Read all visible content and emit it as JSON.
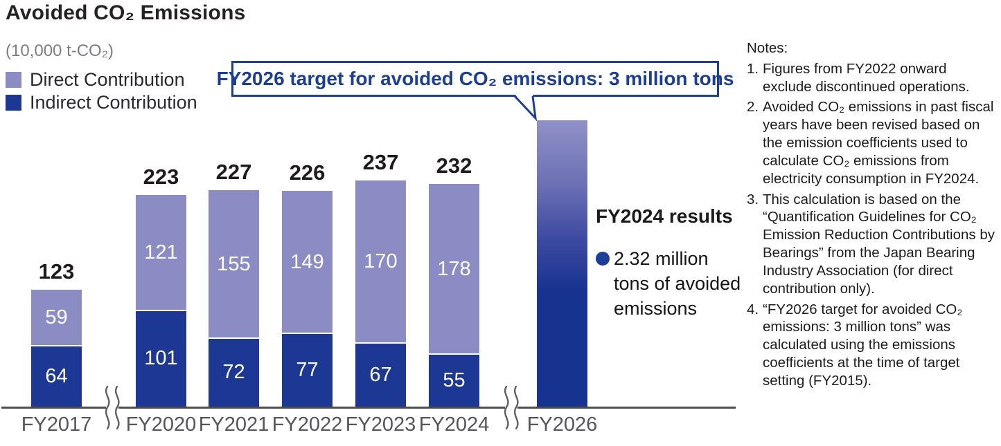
{
  "title": "Avoided CO₂ Emissions",
  "unit_label": "(10,000 t-CO₂)",
  "legend": {
    "direct": "Direct Contribution",
    "indirect": "Indirect Contribution"
  },
  "colors": {
    "direct": "#8b8cc4",
    "indirect": "#1d3894",
    "target_top": "#8f90c6",
    "target_mid": "#3c49a1",
    "target_bottom": "#16338f",
    "callout_blue": "#1c3e99",
    "axis_gray": "#4d4d50"
  },
  "callout": {
    "text": "FY2026 target for avoided CO₂ emissions: 3 million tons"
  },
  "results_panel": {
    "heading": "FY2024 results",
    "bullet_text": "2.32 million tons of avoided emissions"
  },
  "chart_data": {
    "type": "bar",
    "stacked": true,
    "title": "Avoided CO₂ Emissions",
    "ylabel": "(10,000 t-CO₂)",
    "ylim": [
      0,
      300
    ],
    "grid": false,
    "legend_position": "top-left",
    "categories": [
      "FY2017",
      "FY2020",
      "FY2021",
      "FY2022",
      "FY2023",
      "FY2024",
      "FY2026"
    ],
    "series": [
      {
        "name": "Indirect Contribution",
        "values": [
          64,
          101,
          72,
          77,
          67,
          55,
          null
        ]
      },
      {
        "name": "Direct Contribution",
        "values": [
          59,
          121,
          155,
          149,
          170,
          178,
          null
        ]
      }
    ],
    "totals": [
      123,
      223,
      227,
      226,
      237,
      232,
      null
    ],
    "bars": [
      {
        "category": "FY2017",
        "indirect": 64,
        "direct": 59,
        "total": "123"
      },
      {
        "category": "FY2020",
        "indirect": 101,
        "direct": 121,
        "total": "223"
      },
      {
        "category": "FY2021",
        "indirect": 72,
        "direct": 155,
        "total": "227"
      },
      {
        "category": "FY2022",
        "indirect": 77,
        "direct": 149,
        "total": "226"
      },
      {
        "category": "FY2023",
        "indirect": 67,
        "direct": 170,
        "total": "237"
      },
      {
        "category": "FY2024",
        "indirect": 55,
        "direct": 178,
        "total": "232"
      },
      {
        "category": "FY2026",
        "target": 300
      }
    ],
    "target_bar": {
      "category": "FY2026",
      "value": 300,
      "meaning": "3 million tons target"
    },
    "axis_breaks": [
      "between FY2017 and FY2020",
      "between FY2024 and FY2026"
    ]
  },
  "notes": {
    "heading": "Notes:",
    "items": [
      {
        "num": "1.",
        "text": "Figures from FY2022 onward exclude discontinued operations."
      },
      {
        "num": "2.",
        "text": "Avoided CO₂ emissions in past fiscal years have been revised based on the emission coefficients used to calculate CO₂ emissions from electricity consumption in FY2024."
      },
      {
        "num": "3.",
        "text": "This calculation is based on the “Quantification Guidelines for CO₂ Emission Reduction Contributions by Bearings” from the Japan Bearing Industry Association (for direct contribution only)."
      },
      {
        "num": "4.",
        "text": "“FY2026 target for avoided CO₂ emissions: 3 million tons” was calculated using the emissions coefficients at the time of target setting (FY2015)."
      }
    ]
  }
}
